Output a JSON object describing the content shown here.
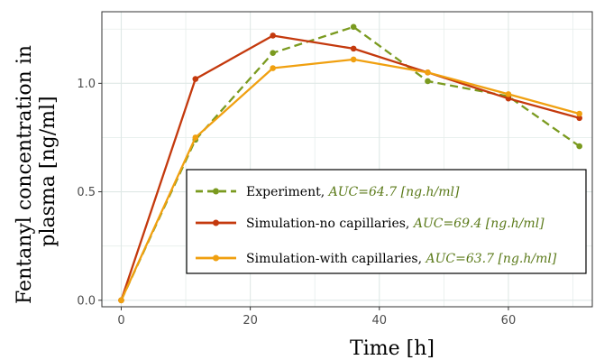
{
  "chart_data": {
    "type": "line",
    "xlabel": "Time [h]",
    "ylabel": [
      "Fentanyl concentration in",
      "plasma [ng/ml]"
    ],
    "xlim": [
      -3,
      73
    ],
    "ylim": [
      -0.03,
      1.33
    ],
    "x_ticks": [
      0,
      20,
      40,
      60
    ],
    "y_ticks": [
      0.0,
      0.5,
      1.0
    ],
    "x_tick_labels": [
      "0",
      "20",
      "40",
      "60"
    ],
    "y_tick_labels": [
      "0.0",
      "0.5",
      "1.0"
    ],
    "grid": true,
    "legend_position": "bottom-right",
    "series": [
      {
        "name": "Experiment, ",
        "auc": "AUC=64.7 [ng.h/ml]",
        "color": "#7a9a1f",
        "dashed": true,
        "x": [
          0,
          11.5,
          23.5,
          36,
          47.5,
          60,
          71
        ],
        "y": [
          0.0,
          0.74,
          1.14,
          1.26,
          1.01,
          0.94,
          0.71
        ]
      },
      {
        "name": "Simulation-no capillaries, ",
        "auc": "AUC=69.4 [ng.h/ml]",
        "color": "#c4390d",
        "dashed": false,
        "x": [
          0,
          11.5,
          23.5,
          36,
          47.5,
          60,
          71
        ],
        "y": [
          0.0,
          1.02,
          1.22,
          1.16,
          1.05,
          0.93,
          0.84
        ]
      },
      {
        "name": "Simulation-with capillaries, ",
        "auc": "AUC=63.7 [ng.h/ml]",
        "color": "#f0a010",
        "dashed": false,
        "x": [
          0,
          11.5,
          23.5,
          36,
          47.5,
          60,
          71
        ],
        "y": [
          0.0,
          0.75,
          1.07,
          1.11,
          1.05,
          0.95,
          0.86
        ]
      }
    ]
  }
}
